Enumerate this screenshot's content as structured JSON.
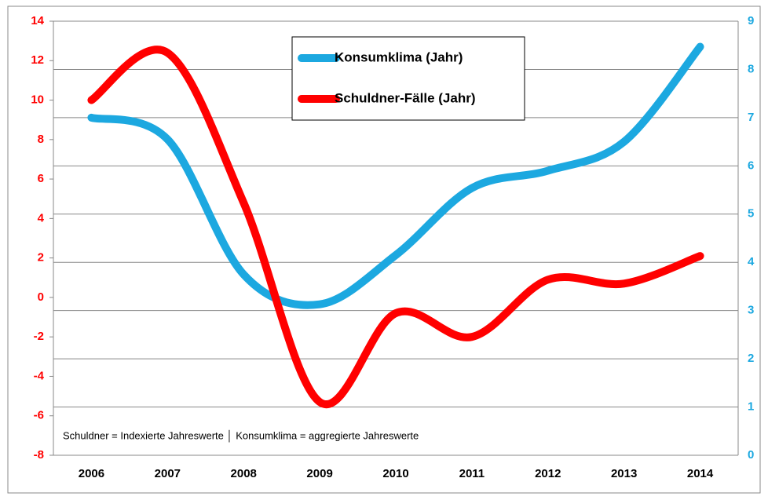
{
  "chart_data": {
    "type": "line",
    "categories": [
      "2006",
      "2007",
      "2008",
      "2009",
      "2010",
      "2011",
      "2012",
      "2013",
      "2014"
    ],
    "series": [
      {
        "name": "Konsumklima (Jahr)",
        "color": "#1ca8e0",
        "axis": "y2",
        "values": [
          7.0,
          6.55,
          3.75,
          3.13,
          4.15,
          5.54,
          5.9,
          6.5,
          8.47
        ]
      },
      {
        "name": "Schuldner-Fälle (Jahr)",
        "color": "#ff0000",
        "values": [
          10.0,
          12.4,
          4.8,
          -5.3,
          -0.8,
          -2.0,
          0.9,
          0.7,
          2.1
        ]
      }
    ],
    "ylim": [
      -8,
      14
    ],
    "yticks": [
      -8,
      -6,
      -4,
      -2,
      0,
      2,
      4,
      6,
      8,
      10,
      12,
      14
    ],
    "y2lim": [
      0,
      9
    ],
    "y2ticks": [
      0,
      1,
      2,
      3,
      4,
      5,
      6,
      7,
      8,
      9
    ],
    "grid": true,
    "annotation": "Schuldner = Indexierte Jahreswerte │ Konsumklima = aggregierte Jahreswerte"
  }
}
